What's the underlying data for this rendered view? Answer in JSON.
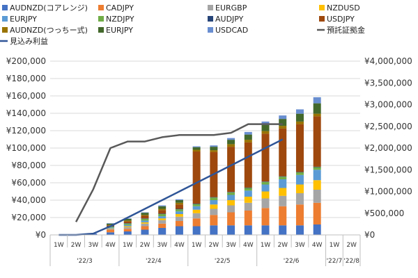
{
  "chart_data": {
    "type": "bar",
    "title": "",
    "xlabel": "",
    "ylabel": "",
    "categories": [
      "1W",
      "2W",
      "3W",
      "4W",
      "1W",
      "2W",
      "3W",
      "4W",
      "1W",
      "2W",
      "3W",
      "4W",
      "1W",
      "2W",
      "3W",
      "4W",
      "1W",
      "2W"
    ],
    "month_groups": [
      {
        "label": "'22/3",
        "span": 4
      },
      {
        "label": "'22/4",
        "span": 4
      },
      {
        "label": "'22/5",
        "span": 4
      },
      {
        "label": "'22/6",
        "span": 4
      },
      {
        "label": "'22/7",
        "span": 1
      },
      {
        "label": "'22/8",
        "span": 1
      }
    ],
    "left_axis": {
      "ylim": [
        0,
        200000
      ],
      "ticks": [
        "¥0",
        "¥20,000",
        "¥40,000",
        "¥60,000",
        "¥80,000",
        "¥100,000",
        "¥120,000",
        "¥140,000",
        "¥160,000",
        "¥180,000",
        "¥200,000"
      ]
    },
    "right_axis": {
      "ylim": [
        0,
        4000000
      ],
      "ticks": [
        "¥0",
        "¥500,000",
        "¥1,000,000",
        "¥1,500,000",
        "¥2,000,000",
        "¥2,500,000",
        "¥3,000,000",
        "¥3,500,000",
        "¥4,000,000"
      ]
    },
    "grid": true,
    "legend_position": "top",
    "series": [
      {
        "name": "AUDNZD(コアレンジ)",
        "color": "#4472C4",
        "values": [
          0,
          0,
          1500,
          3000,
          4000,
          6000,
          8000,
          10000,
          10000,
          11000,
          11000,
          11000,
          11000,
          11000,
          11000,
          12000,
          0,
          0
        ]
      },
      {
        "name": "CADJPY",
        "color": "#ED7D31",
        "values": [
          0,
          0,
          0,
          3000,
          3000,
          4000,
          5000,
          6000,
          9000,
          12000,
          15000,
          17000,
          20000,
          22000,
          24000,
          25000,
          0,
          0
        ]
      },
      {
        "name": "EURGBP",
        "color": "#A5A5A5",
        "values": [
          0,
          0,
          0,
          1000,
          2000,
          3000,
          4000,
          5000,
          6000,
          7000,
          8000,
          9000,
          11000,
          12000,
          13000,
          15000,
          0,
          0
        ]
      },
      {
        "name": "NZDUSD",
        "color": "#FFC000",
        "values": [
          0,
          0,
          0,
          500,
          1000,
          1500,
          2000,
          3000,
          4000,
          5000,
          6000,
          7000,
          8000,
          9000,
          10000,
          11000,
          0,
          0
        ]
      },
      {
        "name": "EURJPY",
        "color": "#5B9BD5",
        "values": [
          0,
          0,
          0,
          1000,
          1500,
          2000,
          2500,
          3000,
          4000,
          5000,
          6000,
          7000,
          8000,
          10000,
          11000,
          12000,
          0,
          0
        ]
      },
      {
        "name": "NZDJPY",
        "color": "#70AD47",
        "values": [
          0,
          0,
          0,
          1000,
          1500,
          2000,
          2500,
          2500,
          2500,
          3000,
          3000,
          3000,
          3000,
          3000,
          3000,
          3000,
          0,
          0
        ]
      },
      {
        "name": "AUDJPY",
        "color": "#264478",
        "values": [
          0,
          0,
          0,
          500,
          500,
          500,
          500,
          500,
          500,
          500,
          500,
          500,
          500,
          500,
          500,
          500,
          0,
          0
        ]
      },
      {
        "name": "USDJPY",
        "color": "#9E480E",
        "values": [
          0,
          0,
          0,
          1000,
          2000,
          3000,
          4000,
          5000,
          60000,
          52000,
          52000,
          52000,
          55000,
          55000,
          55000,
          58000,
          0,
          0
        ]
      },
      {
        "name": "AUDNZD(つっちー式)",
        "color": "#997300",
        "values": [
          0,
          0,
          0,
          500,
          1000,
          1000,
          1500,
          2000,
          2000,
          2000,
          3000,
          3000,
          3000,
          3000,
          3000,
          3000,
          0,
          0
        ]
      },
      {
        "name": "EURJPY",
        "color": "#43682B",
        "values": [
          0,
          0,
          0,
          1500,
          2000,
          2500,
          3000,
          3000,
          3000,
          4000,
          5000,
          6000,
          7000,
          8000,
          9000,
          12000,
          0,
          0
        ]
      },
      {
        "name": "USDCAD",
        "color": "#698ED0",
        "values": [
          0,
          0,
          0,
          500,
          500,
          500,
          1000,
          1000,
          1000,
          1500,
          2000,
          3000,
          4000,
          4000,
          5000,
          7000,
          0,
          0
        ]
      }
    ],
    "lines": [
      {
        "name": "預託証拠金",
        "axis": "right",
        "color": "#595959",
        "values": [
          null,
          300000,
          1050000,
          2000000,
          2150000,
          2150000,
          2250000,
          2300000,
          2300000,
          2300000,
          2350000,
          2550000,
          2550000,
          2550000,
          null,
          null,
          null,
          null
        ]
      },
      {
        "name": "見込み利益",
        "axis": "left",
        "color": "#2F5597",
        "values": [
          0,
          0,
          1500,
          10000,
          20000,
          30000,
          40000,
          50000,
          60000,
          70000,
          80000,
          90000,
          100000,
          110000,
          null,
          null,
          null,
          null
        ]
      }
    ]
  }
}
